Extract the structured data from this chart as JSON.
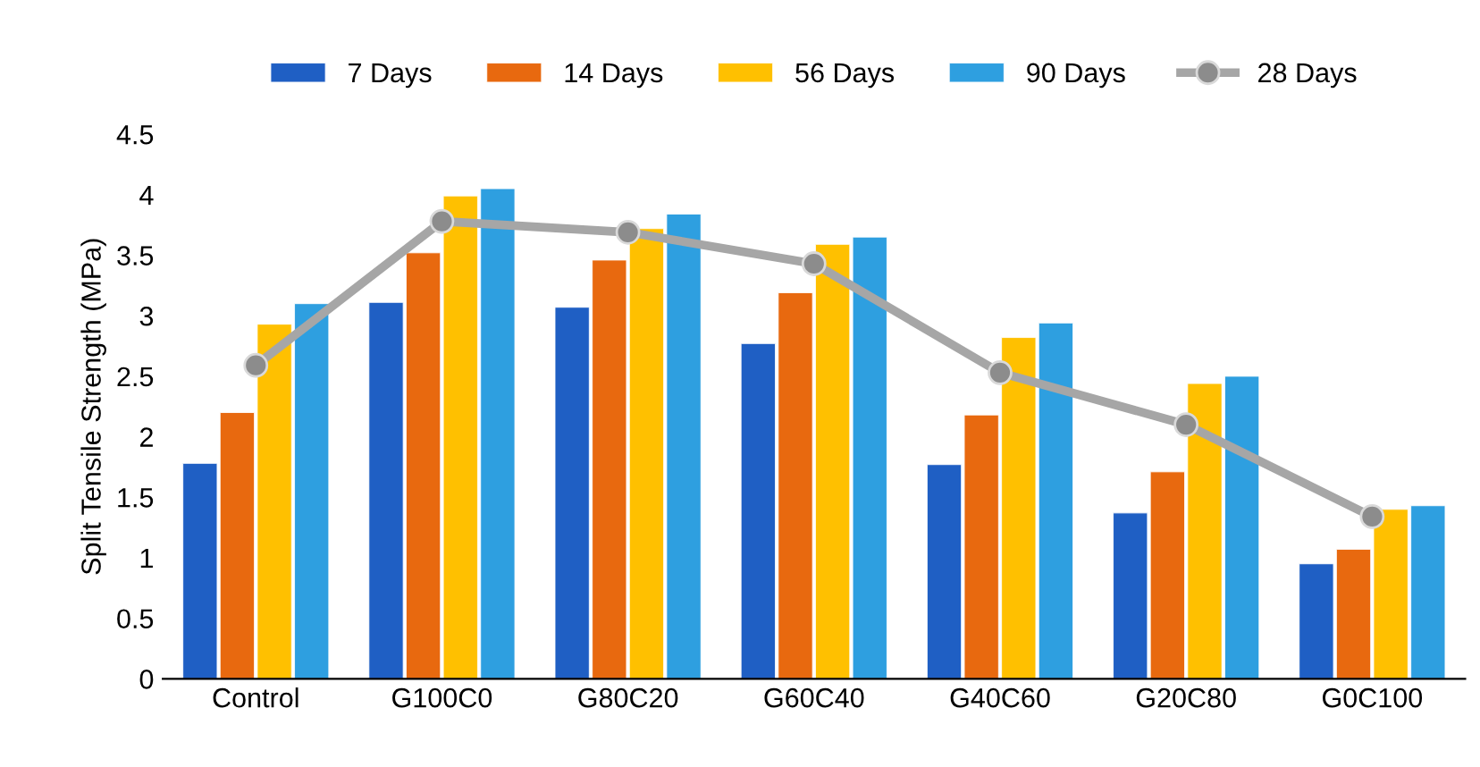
{
  "chart_data": {
    "type": "bar",
    "ylabel": "Split Tensile Strength (MPa)",
    "categories": [
      "Control",
      "G100C0",
      "G80C20",
      "G60C40",
      "G40C60",
      "G20C80",
      "G0C100"
    ],
    "series": [
      {
        "name": "7 Days",
        "color": "#1f5fc4",
        "values": [
          1.78,
          3.11,
          3.07,
          2.77,
          1.77,
          1.37,
          0.95
        ]
      },
      {
        "name": "14 Days",
        "color": "#e8690f",
        "values": [
          2.2,
          3.52,
          3.46,
          3.19,
          2.18,
          1.71,
          1.07
        ]
      },
      {
        "name": "56 Days",
        "color": "#ffc000",
        "values": [
          2.93,
          3.99,
          3.72,
          3.59,
          2.82,
          2.44,
          1.4
        ]
      },
      {
        "name": "90 Days",
        "color": "#2e9fe0",
        "values": [
          3.1,
          4.05,
          3.84,
          3.65,
          2.94,
          2.5,
          1.43
        ]
      },
      {
        "name": "28 Days",
        "type": "line",
        "color": "#a6a6a6",
        "marker": "circle",
        "values": [
          2.59,
          3.78,
          3.69,
          3.43,
          2.53,
          2.1,
          1.34
        ]
      }
    ],
    "ylim": [
      0,
      4.5
    ],
    "yticks": [
      0,
      0.5,
      1,
      1.5,
      2,
      2.5,
      3,
      3.5,
      4,
      4.5
    ],
    "grid": false,
    "legend": "top"
  }
}
